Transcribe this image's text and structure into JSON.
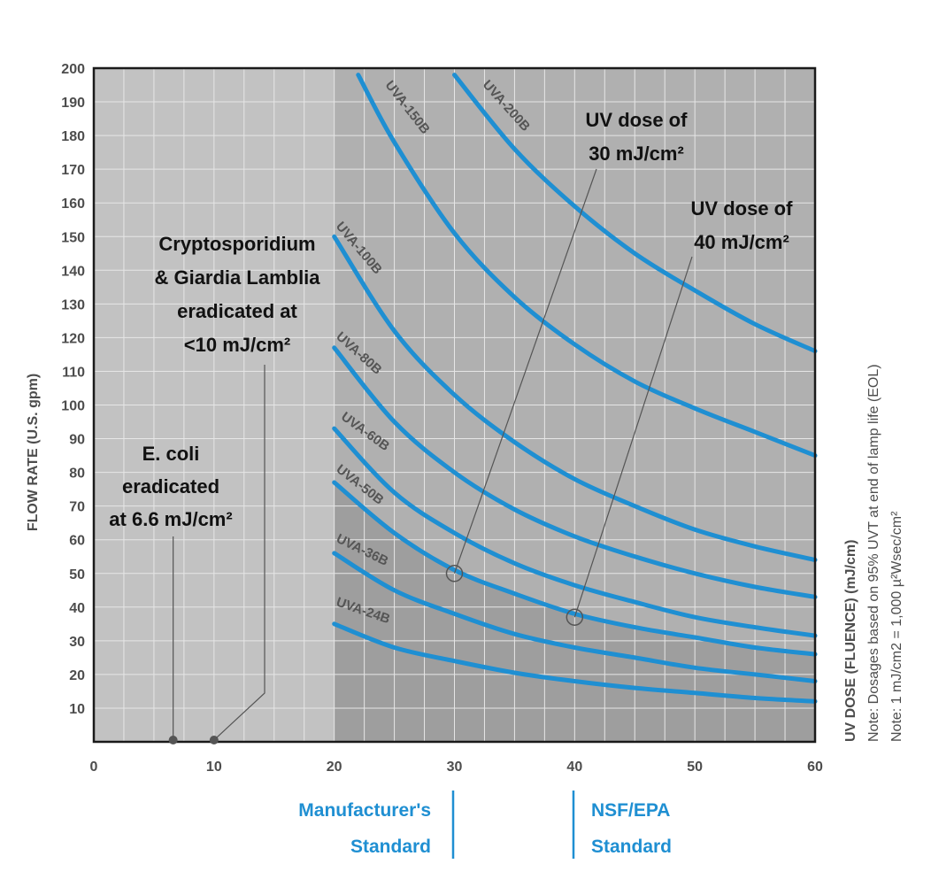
{
  "chart_data": {
    "type": "line",
    "ylabel": "FLOW RATE (U.S. gpm)",
    "y2label": "UV DOSE (FLUENCE) (mJ/cm)",
    "notes": [
      "Note: Dosages based on 95% UVT at end of lamp life (EOL)",
      "Note: 1 mJ/cm2 = 1,000 µ²Wsec/cm²"
    ],
    "xlim": [
      0,
      60
    ],
    "ylim": [
      0,
      200
    ],
    "x_ticks": [
      "0",
      "10",
      "20",
      "30",
      "40",
      "50",
      "60"
    ],
    "y_ticks": [
      "10",
      "20",
      "30",
      "40",
      "50",
      "60",
      "70",
      "80",
      "90",
      "100",
      "110",
      "120",
      "130",
      "140",
      "150",
      "160",
      "170",
      "180",
      "190",
      "200"
    ],
    "grid": true,
    "series": [
      {
        "name": "UVA-24B",
        "x": [
          20,
          25,
          30,
          35,
          40,
          45,
          50,
          55,
          60
        ],
        "y": [
          35,
          28,
          24,
          20.5,
          18,
          16,
          14.5,
          13,
          12
        ]
      },
      {
        "name": "UVA-36B",
        "x": [
          20,
          25,
          30,
          35,
          40,
          45,
          50,
          55,
          60
        ],
        "y": [
          56,
          45,
          38,
          32,
          28,
          25,
          22,
          20,
          18
        ]
      },
      {
        "name": "UVA-50B",
        "x": [
          20,
          25,
          30,
          35,
          40,
          45,
          50,
          55,
          60
        ],
        "y": [
          77,
          62,
          51,
          44,
          38,
          34,
          31,
          28,
          26
        ]
      },
      {
        "name": "UVA-60B",
        "x": [
          20,
          25,
          30,
          35,
          40,
          45,
          50,
          55,
          60
        ],
        "y": [
          93,
          74,
          62,
          53,
          46.5,
          41.5,
          37,
          34,
          31.5
        ]
      },
      {
        "name": "UVA-80B",
        "x": [
          20,
          25,
          30,
          35,
          40,
          45,
          50,
          55,
          60
        ],
        "y": [
          117,
          95,
          80,
          69,
          61,
          55,
          50,
          46,
          43
        ]
      },
      {
        "name": "UVA-100B",
        "x": [
          20,
          25,
          30,
          35,
          40,
          45,
          50,
          55,
          60
        ],
        "y": [
          150,
          122,
          103,
          89,
          78,
          70,
          63,
          58,
          54
        ]
      },
      {
        "name": "UVA-150B",
        "x": [
          22,
          25,
          30,
          35,
          40,
          45,
          50,
          55,
          60
        ],
        "y": [
          198,
          178,
          151,
          132,
          118,
          107,
          99,
          92,
          85
        ]
      },
      {
        "name": "UVA-200B",
        "x": [
          30,
          35,
          40,
          45,
          50,
          55,
          60
        ],
        "y": [
          198,
          176,
          159,
          145,
          134,
          124,
          116
        ]
      }
    ],
    "annotations": {
      "ecoli": {
        "lines": [
          "E. coli",
          "eradicated",
          "at 6.6 mJ/cm²"
        ],
        "dose": 6.6
      },
      "crypto": {
        "lines": [
          "Cryptosporidium",
          "& Giardia Lamblia",
          "eradicated at",
          "<10 mJ/cm²"
        ],
        "dose": 10
      },
      "dose30": {
        "lines": [
          "UV dose of",
          "30 mJ/cm²"
        ],
        "point": [
          30,
          50
        ]
      },
      "dose40": {
        "lines": [
          "UV dose of",
          "40 mJ/cm²"
        ],
        "point": [
          40,
          37
        ]
      }
    },
    "standards": [
      {
        "lines": [
          "Manufacturer's",
          "Standard"
        ]
      },
      {
        "lines": [
          "NSF/EPA",
          "Standard"
        ]
      }
    ],
    "colors": {
      "curve": "#1f8fd2",
      "plot_left": "#c2c2c2",
      "plot_right": "#b0b0b0",
      "shaded_region": "#9e9e9e",
      "grid": "#e6e6e6",
      "standard_text": "#1f8fd2"
    }
  }
}
